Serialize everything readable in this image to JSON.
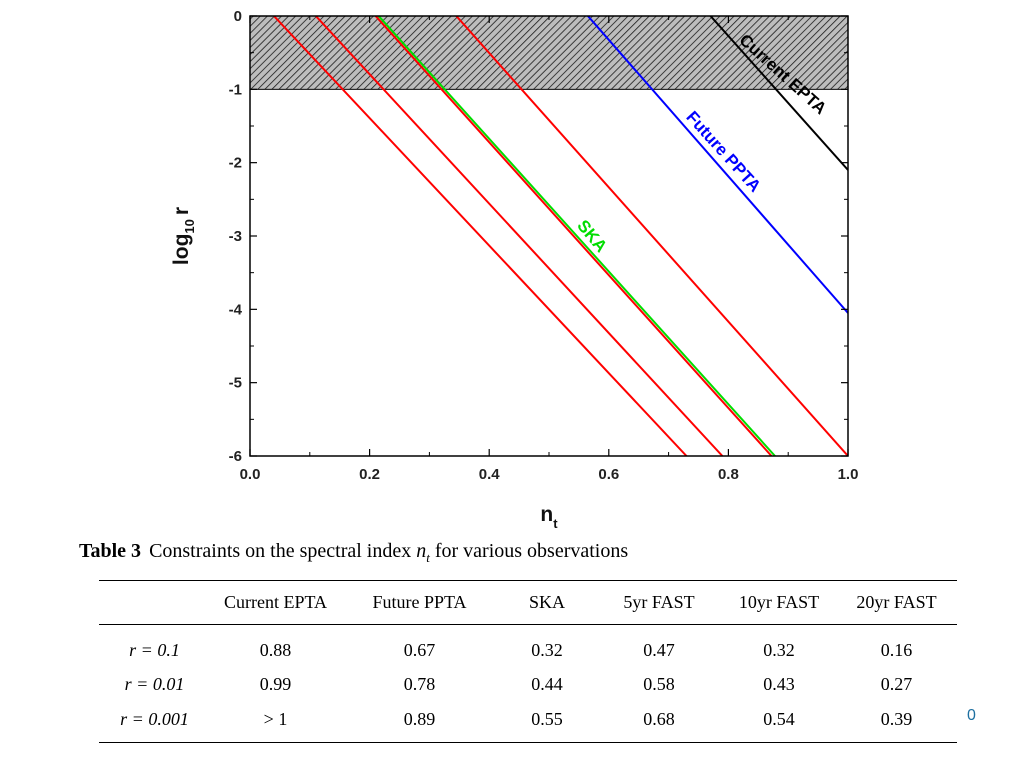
{
  "chart_data": {
    "type": "line",
    "xlabel": "n",
    "xlabel_sub": "t",
    "ylabel": "log",
    "ylabel_sub": "10",
    "ylabel_suffix": "r",
    "xlim": [
      0.0,
      1.0
    ],
    "ylim": [
      -6,
      0
    ],
    "xticks": [
      "0.0",
      "0.2",
      "0.4",
      "0.6",
      "0.8",
      "1.0"
    ],
    "yticks": [
      "0",
      "-1",
      "-2",
      "-3",
      "-4",
      "-5",
      "-6"
    ],
    "shaded_region": {
      "y_from": -1,
      "y_to": 0,
      "pattern": "hatched"
    },
    "series": [
      {
        "name": "Current EPTA",
        "color": "#000000",
        "x": [
          0.77,
          1.0
        ],
        "y": [
          0,
          -2.1
        ]
      },
      {
        "name": "Future PPTA",
        "color": "#0000ff",
        "x": [
          0.565,
          1.0
        ],
        "y": [
          0,
          -4.05
        ]
      },
      {
        "name": "SKA",
        "color": "#00dd00",
        "x": [
          0.215,
          0.878
        ],
        "y": [
          0,
          -6
        ]
      },
      {
        "color": "#ff0000",
        "x": [
          0.04,
          0.73
        ],
        "y": [
          0,
          -6
        ]
      },
      {
        "color": "#ff0000",
        "x": [
          0.11,
          0.79
        ],
        "y": [
          0,
          -6
        ]
      },
      {
        "color": "#ff0000",
        "x": [
          0.21,
          0.872
        ],
        "y": [
          0,
          -6
        ]
      },
      {
        "color": "#ff0000",
        "x": [
          0.345,
          1.0
        ],
        "y": [
          0,
          -6
        ]
      }
    ],
    "annotations": [
      {
        "text": "Current EPTA",
        "x": 0.885,
        "y": -0.85,
        "angle": 42,
        "color": "#000000"
      },
      {
        "text": "Future PPTA",
        "x": 0.785,
        "y": -1.9,
        "angle": 48,
        "color": "#0000ff"
      },
      {
        "text": "SKA",
        "x": 0.565,
        "y": -3.05,
        "angle": 50,
        "color": "#00dd00"
      }
    ]
  },
  "caption": {
    "label": "Table 3",
    "text_before": "Constraints on the spectral index",
    "variable": "n",
    "variable_sub": "t",
    "text_after": "for various observations"
  },
  "table": {
    "columns": [
      "",
      "Current EPTA",
      "Future PPTA",
      "SKA",
      "5yr FAST",
      "10yr FAST",
      "20yr FAST"
    ],
    "rows": [
      {
        "label": "r = 0.1",
        "values": [
          "0.88",
          "0.67",
          "0.32",
          "0.47",
          "0.32",
          "0.16"
        ]
      },
      {
        "label": "r = 0.01",
        "values": [
          "0.99",
          "0.78",
          "0.44",
          "0.58",
          "0.43",
          "0.27"
        ]
      },
      {
        "label": "r = 0.001",
        "values": [
          "> 1",
          "0.89",
          "0.55",
          "0.68",
          "0.54",
          "0.39"
        ]
      }
    ]
  },
  "page_number": "0"
}
